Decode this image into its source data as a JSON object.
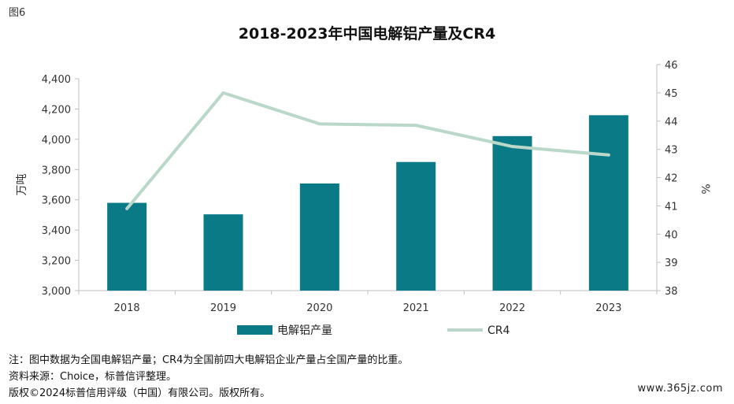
{
  "figure_label": "图6",
  "chart_data": {
    "type": "bar-line",
    "title": "2018-2023年中国电解铝产量及CR4",
    "categories": [
      "2018",
      "2019",
      "2020",
      "2021",
      "2022",
      "2023"
    ],
    "bar_series": {
      "name": "电解铝产量",
      "values": [
        3580,
        3504,
        3708,
        3850,
        4021,
        4159
      ],
      "color": "#0a7a87"
    },
    "line_series": {
      "name": "CR4",
      "values": [
        40.9,
        45.0,
        43.9,
        43.85,
        43.1,
        42.8
      ],
      "color": "#b9d8c9"
    },
    "y_left": {
      "label": "万吨",
      "min": 3000,
      "max": 4400,
      "step": 200,
      "ticks": [
        "3,000",
        "3,200",
        "3,400",
        "3,600",
        "3,800",
        "4,000",
        "4,200",
        "4,400"
      ]
    },
    "y_right": {
      "label": "%",
      "min": 38,
      "max": 46,
      "step": 1,
      "ticks": [
        "38",
        "39",
        "40",
        "41",
        "42",
        "43",
        "44",
        "45",
        "46"
      ]
    },
    "legend_position": "bottom",
    "grid": false
  },
  "notes": [
    "注：图中数据为全国电解铝产量；CR4为全国前四大电解铝企业产量占全国产量的比重。",
    "资料来源：Choice，标普信评整理。",
    "版权©2024标普信用评级（中国）有限公司。版权所有。"
  ],
  "watermark": "www.365jz.com"
}
